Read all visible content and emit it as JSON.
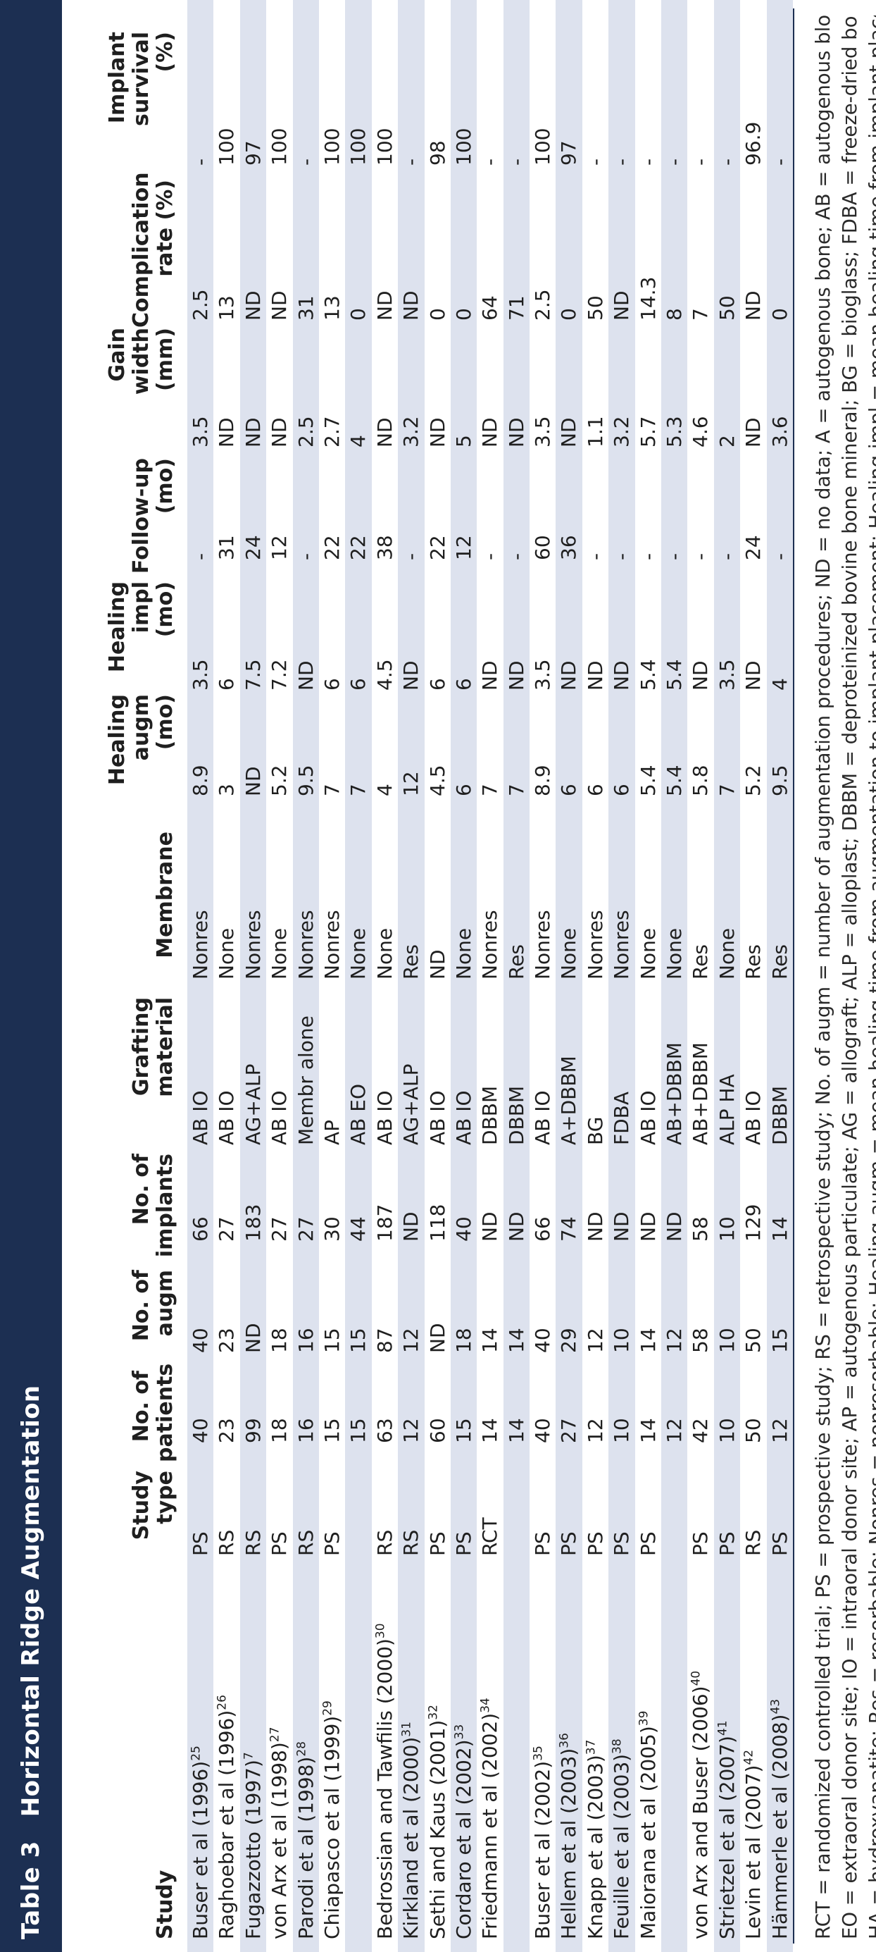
{
  "table": {
    "label": "Table 3",
    "title": "Horizontal Ridge Augmentation",
    "columns": [
      {
        "key": "study",
        "label": "Study"
      },
      {
        "key": "type",
        "label": "Study\ntype"
      },
      {
        "key": "patients",
        "label": "No. of\npatients"
      },
      {
        "key": "augm",
        "label": "No. of\naugm"
      },
      {
        "key": "implants",
        "label": "No. of\nimplants"
      },
      {
        "key": "material",
        "label": "Grafting\nmaterial"
      },
      {
        "key": "membrane",
        "label": "Membrane"
      },
      {
        "key": "heal_augm",
        "label": "Healing\naugm (mo)"
      },
      {
        "key": "heal_impl",
        "label": "Healing\nimpl (mo)"
      },
      {
        "key": "follow",
        "label": "Follow-up\n(mo)"
      },
      {
        "key": "gain",
        "label": "Gain width\n(mm)"
      },
      {
        "key": "complication",
        "label": "Complication\nrate (%)"
      },
      {
        "key": "survival",
        "label": "Implant\nsurvival (%)"
      }
    ],
    "rows": [
      {
        "study": "Buser et al (1996)",
        "ref": "25",
        "type": "PS",
        "patients": "40",
        "augm": "40",
        "implants": "66",
        "material": "AB IO",
        "membrane": "Nonres",
        "heal_augm": "8.9",
        "heal_impl": "3.5",
        "follow": "-",
        "gain": "3.5",
        "complication": "2.5",
        "survival": "-"
      },
      {
        "study": "Raghoebar et al (1996)",
        "ref": "26",
        "type": "RS",
        "patients": "23",
        "augm": "23",
        "implants": "27",
        "material": "AB IO",
        "membrane": "None",
        "heal_augm": "3",
        "heal_impl": "6",
        "follow": "31",
        "gain": "ND",
        "complication": "13",
        "survival": "100"
      },
      {
        "study": "Fugazzotto (1997)",
        "ref": "7",
        "type": "RS",
        "patients": "99",
        "augm": "ND",
        "implants": "183",
        "material": "AG+ALP",
        "membrane": "Nonres",
        "heal_augm": "ND",
        "heal_impl": "7.5",
        "follow": "24",
        "gain": "ND",
        "complication": "ND",
        "survival": "97"
      },
      {
        "study": "von Arx et al (1998)",
        "ref": "27",
        "type": "PS",
        "patients": "18",
        "augm": "18",
        "implants": "27",
        "material": "AB IO",
        "membrane": "None",
        "heal_augm": "5.2",
        "heal_impl": "7.2",
        "follow": "12",
        "gain": "ND",
        "complication": "ND",
        "survival": "100"
      },
      {
        "study": "Parodi et al (1998)",
        "ref": "28",
        "type": "RS",
        "patients": "16",
        "augm": "16",
        "implants": "27",
        "material": "Membr alone",
        "membrane": "Nonres",
        "heal_augm": "9.5",
        "heal_impl": "ND",
        "follow": "-",
        "gain": "2.5",
        "complication": "31",
        "survival": "-"
      },
      {
        "study": "Chiapasco et al (1999)",
        "ref": "29",
        "type": "PS",
        "patients": "15",
        "augm": "15",
        "implants": "30",
        "material": "AP",
        "membrane": "Nonres",
        "heal_augm": "7",
        "heal_impl": "6",
        "follow": "22",
        "gain": "2.7",
        "complication": "13",
        "survival": "100"
      },
      {
        "study": "",
        "ref": "",
        "type": "",
        "patients": "15",
        "augm": "15",
        "implants": "44",
        "material": "AB EO",
        "membrane": "None",
        "heal_augm": "7",
        "heal_impl": "6",
        "follow": "22",
        "gain": "4",
        "complication": "0",
        "survival": "100"
      },
      {
        "study": "Bedrossian and Tawfilis (2000)",
        "ref": "30",
        "type": "RS",
        "patients": "63",
        "augm": "87",
        "implants": "187",
        "material": "AB IO",
        "membrane": "None",
        "heal_augm": "4",
        "heal_impl": "4.5",
        "follow": "38",
        "gain": "ND",
        "complication": "ND",
        "survival": "100"
      },
      {
        "study": "Kirkland et al (2000)",
        "ref": "31",
        "type": "RS",
        "patients": "12",
        "augm": "12",
        "implants": "ND",
        "material": "AG+ALP",
        "membrane": "Res",
        "heal_augm": "12",
        "heal_impl": "ND",
        "follow": "-",
        "gain": "3.2",
        "complication": "ND",
        "survival": "-"
      },
      {
        "study": "Sethi and Kaus (2001)",
        "ref": "32",
        "type": "PS",
        "patients": "60",
        "augm": "ND",
        "implants": "118",
        "material": "AB IO",
        "membrane": "ND",
        "heal_augm": "4.5",
        "heal_impl": "6",
        "follow": "22",
        "gain": "ND",
        "complication": "0",
        "survival": "98"
      },
      {
        "study": "Cordaro et al (2002)",
        "ref": "33",
        "type": "PS",
        "patients": "15",
        "augm": "18",
        "implants": "40",
        "material": "AB IO",
        "membrane": "None",
        "heal_augm": "6",
        "heal_impl": "6",
        "follow": "12",
        "gain": "5",
        "complication": "0",
        "survival": "100"
      },
      {
        "study": "Friedmann et al (2002)",
        "ref": "34",
        "type": "RCT",
        "patients": "14",
        "augm": "14",
        "implants": "ND",
        "material": "DBBM",
        "membrane": "Nonres",
        "heal_augm": "7",
        "heal_impl": "ND",
        "follow": "-",
        "gain": "ND",
        "complication": "64",
        "survival": "-"
      },
      {
        "study": "",
        "ref": "",
        "type": "",
        "patients": "14",
        "augm": "14",
        "implants": "ND",
        "material": "DBBM",
        "membrane": "Res",
        "heal_augm": "7",
        "heal_impl": "ND",
        "follow": "-",
        "gain": "ND",
        "complication": "71",
        "survival": "-"
      },
      {
        "study": "Buser et al (2002)",
        "ref": "35",
        "type": "PS",
        "patients": "40",
        "augm": "40",
        "implants": "66",
        "material": "AB IO",
        "membrane": "Nonres",
        "heal_augm": "8.9",
        "heal_impl": "3.5",
        "follow": "60",
        "gain": "3.5",
        "complication": "2.5",
        "survival": "100"
      },
      {
        "study": "Hellem et al (2003)",
        "ref": "36",
        "type": "PS",
        "patients": "27",
        "augm": "29",
        "implants": "74",
        "material": "A+DBBM",
        "membrane": "None",
        "heal_augm": "6",
        "heal_impl": "ND",
        "follow": "36",
        "gain": "ND",
        "complication": "0",
        "survival": "97"
      },
      {
        "study": "Knapp et al (2003)",
        "ref": "37",
        "type": "PS",
        "patients": "12",
        "augm": "12",
        "implants": "ND",
        "material": "BG",
        "membrane": "Nonres",
        "heal_augm": "6",
        "heal_impl": "ND",
        "follow": "-",
        "gain": "1.1",
        "complication": "50",
        "survival": "-"
      },
      {
        "study": "Feuille et al (2003)",
        "ref": "38",
        "type": "PS",
        "patients": "10",
        "augm": "10",
        "implants": "ND",
        "material": "FDBA",
        "membrane": "Nonres",
        "heal_augm": "6",
        "heal_impl": "ND",
        "follow": "-",
        "gain": "3.2",
        "complication": "ND",
        "survival": "-"
      },
      {
        "study": "Maiorana et al (2005)",
        "ref": "39",
        "type": "PS",
        "patients": "14",
        "augm": "14",
        "implants": "ND",
        "material": "AB IO",
        "membrane": "None",
        "heal_augm": "5.4",
        "heal_impl": "5.4",
        "follow": "-",
        "gain": "5.7",
        "complication": "14.3",
        "survival": "-"
      },
      {
        "study": "",
        "ref": "",
        "type": "",
        "patients": "12",
        "augm": "12",
        "implants": "ND",
        "material": "AB+DBBM",
        "membrane": "None",
        "heal_augm": "5.4",
        "heal_impl": "5.4",
        "follow": "-",
        "gain": "5.3",
        "complication": "8",
        "survival": "-"
      },
      {
        "study": "von Arx and Buser (2006)",
        "ref": "40",
        "type": "PS",
        "patients": "42",
        "augm": "58",
        "implants": "58",
        "material": "AB+DBBM",
        "membrane": "Res",
        "heal_augm": "5.8",
        "heal_impl": "ND",
        "follow": "-",
        "gain": "4.6",
        "complication": "7",
        "survival": "-"
      },
      {
        "study": "Strietzel et al (2007)",
        "ref": "41",
        "type": "PS",
        "patients": "10",
        "augm": "10",
        "implants": "10",
        "material": "ALP HA",
        "membrane": "None",
        "heal_augm": "7",
        "heal_impl": "3.5",
        "follow": "-",
        "gain": "2",
        "complication": "50",
        "survival": "-"
      },
      {
        "study": "Levin et al (2007)",
        "ref": "42",
        "type": "RS",
        "patients": "50",
        "augm": "50",
        "implants": "129",
        "material": "AB IO",
        "membrane": "Res",
        "heal_augm": "5.2",
        "heal_impl": "ND",
        "follow": "24",
        "gain": "ND",
        "complication": "ND",
        "survival": "96.9"
      },
      {
        "study": "Hämmerle et al (2008)",
        "ref": "43",
        "type": "PS",
        "patients": "12",
        "augm": "15",
        "implants": "14",
        "material": "DBBM",
        "membrane": "Res",
        "heal_augm": "9.5",
        "heal_impl": "4",
        "follow": "-",
        "gain": "3.6",
        "complication": "0",
        "survival": "-"
      }
    ],
    "footnotes": [
      "RCT = randomized controlled trial; PS = prospective study; RS = retrospective study; No. of augm = number of augmentation procedures; ND = no data; A = autogenous bone; AB = autogenous block;",
      "EO = extraoral donor site; IO = intraoral donor site; AP = autogenous particulate; AG = allograft; ALP = alloplast; DBBM = deproteinized bovine bone mineral; BG = bioglass; FDBA = freeze-dried bone allograft;",
      "HA = hydroxyapatite; Res = resorbable; Nonres = nonresorbable; Healing augm = mean healing time from augmentation to implant placement; Healing impl = mean healing time from implant placement to loading;"
    ]
  },
  "colors": {
    "header_band": "#1c2f52",
    "row_shade": "#dde2ee",
    "row_plain": "#ffffff"
  }
}
